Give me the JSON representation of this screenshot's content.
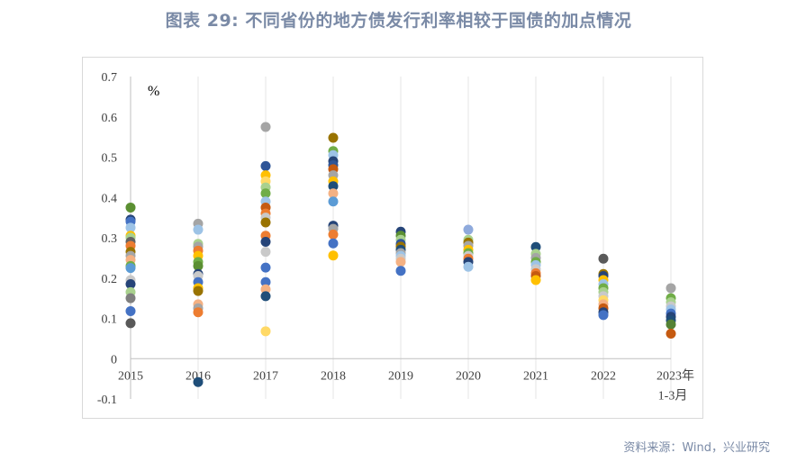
{
  "title": "图表 29: 不同省份的地方债发行利率相较于国债的加点情况",
  "source": "资料来源：Wind，兴业研究",
  "chart_data": {
    "type": "scatter",
    "unit_label": "%",
    "x_categories": [
      "2015",
      "2016",
      "2017",
      "2018",
      "2019",
      "2020",
      "2021",
      "2022",
      "2023年"
    ],
    "x_last_sublabel": "1-3月",
    "y_ticks": [
      "0.7",
      "0.6",
      "0.5",
      "0.4",
      "0.3",
      "0.2",
      "0.1",
      "0",
      "-0.1"
    ],
    "ylim": [
      -0.1,
      0.7
    ],
    "grid": "vertical",
    "points": [
      {
        "x": 0,
        "y": 0.375,
        "color": "#5b8f32"
      },
      {
        "x": 0,
        "y": 0.345,
        "color": "#264478"
      },
      {
        "x": 0,
        "y": 0.34,
        "color": "#4472c4"
      },
      {
        "x": 0,
        "y": 0.325,
        "color": "#9dc3e6"
      },
      {
        "x": 0,
        "y": 0.305,
        "color": "#ffc000"
      },
      {
        "x": 0,
        "y": 0.3,
        "color": "#a9d18e"
      },
      {
        "x": 0,
        "y": 0.29,
        "color": "#636363"
      },
      {
        "x": 0,
        "y": 0.28,
        "color": "#ed7d31"
      },
      {
        "x": 0,
        "y": 0.265,
        "color": "#997300"
      },
      {
        "x": 0,
        "y": 0.255,
        "color": "#a5a5a5"
      },
      {
        "x": 0,
        "y": 0.245,
        "color": "#f4b183"
      },
      {
        "x": 0,
        "y": 0.23,
        "color": "#70ad47"
      },
      {
        "x": 0,
        "y": 0.225,
        "color": "#5b9bd5"
      },
      {
        "x": 0,
        "y": 0.195,
        "color": "#c9c9c9"
      },
      {
        "x": 0,
        "y": 0.185,
        "color": "#264478"
      },
      {
        "x": 0,
        "y": 0.165,
        "color": "#a9d18e"
      },
      {
        "x": 0,
        "y": 0.15,
        "color": "#7f7f7f"
      },
      {
        "x": 0,
        "y": 0.118,
        "color": "#4472c4"
      },
      {
        "x": 0,
        "y": 0.088,
        "color": "#595959"
      },
      {
        "x": 1,
        "y": 0.335,
        "color": "#a5a5a5"
      },
      {
        "x": 1,
        "y": 0.32,
        "color": "#9dc3e6"
      },
      {
        "x": 1,
        "y": 0.285,
        "color": "#a9d18e"
      },
      {
        "x": 1,
        "y": 0.278,
        "color": "#a5a5a5"
      },
      {
        "x": 1,
        "y": 0.268,
        "color": "#ed7d31"
      },
      {
        "x": 1,
        "y": 0.255,
        "color": "#ffc000"
      },
      {
        "x": 1,
        "y": 0.24,
        "color": "#70ad47"
      },
      {
        "x": 1,
        "y": 0.23,
        "color": "#5b8f32"
      },
      {
        "x": 1,
        "y": 0.21,
        "color": "#264478"
      },
      {
        "x": 1,
        "y": 0.205,
        "color": "#c9c9c9"
      },
      {
        "x": 1,
        "y": 0.19,
        "color": "#4472c4"
      },
      {
        "x": 1,
        "y": 0.175,
        "color": "#ffc000"
      },
      {
        "x": 1,
        "y": 0.168,
        "color": "#997300"
      },
      {
        "x": 1,
        "y": 0.135,
        "color": "#f4b183"
      },
      {
        "x": 1,
        "y": 0.125,
        "color": "#a5a5a5"
      },
      {
        "x": 1,
        "y": 0.115,
        "color": "#ed7d31"
      },
      {
        "x": 1,
        "y": -0.058,
        "color": "#1f4e79"
      },
      {
        "x": 2,
        "y": 0.575,
        "color": "#a5a5a5"
      },
      {
        "x": 2,
        "y": 0.478,
        "color": "#2f5597"
      },
      {
        "x": 2,
        "y": 0.455,
        "color": "#ffc000"
      },
      {
        "x": 2,
        "y": 0.44,
        "color": "#ffd966"
      },
      {
        "x": 2,
        "y": 0.425,
        "color": "#a9d18e"
      },
      {
        "x": 2,
        "y": 0.41,
        "color": "#70ad47"
      },
      {
        "x": 2,
        "y": 0.39,
        "color": "#9dc3e6"
      },
      {
        "x": 2,
        "y": 0.375,
        "color": "#c55a11"
      },
      {
        "x": 2,
        "y": 0.36,
        "color": "#ed7d31"
      },
      {
        "x": 2,
        "y": 0.35,
        "color": "#c9c9c9"
      },
      {
        "x": 2,
        "y": 0.338,
        "color": "#997300"
      },
      {
        "x": 2,
        "y": 0.305,
        "color": "#ed7d31"
      },
      {
        "x": 2,
        "y": 0.29,
        "color": "#264478"
      },
      {
        "x": 2,
        "y": 0.265,
        "color": "#c9c9c9"
      },
      {
        "x": 2,
        "y": 0.226,
        "color": "#4472c4"
      },
      {
        "x": 2,
        "y": 0.19,
        "color": "#4472c4"
      },
      {
        "x": 2,
        "y": 0.172,
        "color": "#f4b183"
      },
      {
        "x": 2,
        "y": 0.155,
        "color": "#1f4e79"
      },
      {
        "x": 2,
        "y": 0.068,
        "color": "#ffd966"
      },
      {
        "x": 3,
        "y": 0.548,
        "color": "#997300"
      },
      {
        "x": 3,
        "y": 0.515,
        "color": "#70ad47"
      },
      {
        "x": 3,
        "y": 0.505,
        "color": "#9dc3e6"
      },
      {
        "x": 3,
        "y": 0.49,
        "color": "#264478"
      },
      {
        "x": 3,
        "y": 0.48,
        "color": "#2f5597"
      },
      {
        "x": 3,
        "y": 0.47,
        "color": "#c55a11"
      },
      {
        "x": 3,
        "y": 0.455,
        "color": "#a5a5a5"
      },
      {
        "x": 3,
        "y": 0.44,
        "color": "#ffc000"
      },
      {
        "x": 3,
        "y": 0.428,
        "color": "#1f4e79"
      },
      {
        "x": 3,
        "y": 0.41,
        "color": "#f4b183"
      },
      {
        "x": 3,
        "y": 0.39,
        "color": "#5b9bd5"
      },
      {
        "x": 3,
        "y": 0.33,
        "color": "#264478"
      },
      {
        "x": 3,
        "y": 0.322,
        "color": "#a5a5a5"
      },
      {
        "x": 3,
        "y": 0.308,
        "color": "#ed7d31"
      },
      {
        "x": 3,
        "y": 0.286,
        "color": "#4472c4"
      },
      {
        "x": 3,
        "y": 0.256,
        "color": "#ffc000"
      },
      {
        "x": 4,
        "y": 0.315,
        "color": "#264478"
      },
      {
        "x": 4,
        "y": 0.305,
        "color": "#5b8f32"
      },
      {
        "x": 4,
        "y": 0.295,
        "color": "#a9d18e"
      },
      {
        "x": 4,
        "y": 0.285,
        "color": "#2f5597"
      },
      {
        "x": 4,
        "y": 0.278,
        "color": "#997300"
      },
      {
        "x": 4,
        "y": 0.27,
        "color": "#1f4e79"
      },
      {
        "x": 4,
        "y": 0.262,
        "color": "#a5a5a5"
      },
      {
        "x": 4,
        "y": 0.255,
        "color": "#9dc3e6"
      },
      {
        "x": 4,
        "y": 0.248,
        "color": "#c9c9c9"
      },
      {
        "x": 4,
        "y": 0.24,
        "color": "#f4b183"
      },
      {
        "x": 4,
        "y": 0.218,
        "color": "#4472c4"
      },
      {
        "x": 5,
        "y": 0.32,
        "color": "#8faadc"
      },
      {
        "x": 5,
        "y": 0.295,
        "color": "#a9d18e"
      },
      {
        "x": 5,
        "y": 0.288,
        "color": "#997300"
      },
      {
        "x": 5,
        "y": 0.28,
        "color": "#a5a5a5"
      },
      {
        "x": 5,
        "y": 0.27,
        "color": "#ffc000"
      },
      {
        "x": 5,
        "y": 0.262,
        "color": "#70ad47"
      },
      {
        "x": 5,
        "y": 0.255,
        "color": "#c9c9c9"
      },
      {
        "x": 5,
        "y": 0.248,
        "color": "#ed7d31"
      },
      {
        "x": 5,
        "y": 0.24,
        "color": "#264478"
      },
      {
        "x": 5,
        "y": 0.228,
        "color": "#9dc3e6"
      },
      {
        "x": 6,
        "y": 0.277,
        "color": "#1f4e79"
      },
      {
        "x": 6,
        "y": 0.26,
        "color": "#a9d18e"
      },
      {
        "x": 6,
        "y": 0.25,
        "color": "#a5a5a5"
      },
      {
        "x": 6,
        "y": 0.24,
        "color": "#70ad47"
      },
      {
        "x": 6,
        "y": 0.232,
        "color": "#9dc3e6"
      },
      {
        "x": 6,
        "y": 0.222,
        "color": "#c9c9c9"
      },
      {
        "x": 6,
        "y": 0.212,
        "color": "#ed7d31"
      },
      {
        "x": 6,
        "y": 0.205,
        "color": "#c55a11"
      },
      {
        "x": 6,
        "y": 0.195,
        "color": "#ffc000"
      },
      {
        "x": 7,
        "y": 0.248,
        "color": "#595959"
      },
      {
        "x": 7,
        "y": 0.21,
        "color": "#997300"
      },
      {
        "x": 7,
        "y": 0.205,
        "color": "#264478"
      },
      {
        "x": 7,
        "y": 0.195,
        "color": "#ffc000"
      },
      {
        "x": 7,
        "y": 0.185,
        "color": "#9dc3e6"
      },
      {
        "x": 7,
        "y": 0.175,
        "color": "#70ad47"
      },
      {
        "x": 7,
        "y": 0.165,
        "color": "#a9d18e"
      },
      {
        "x": 7,
        "y": 0.155,
        "color": "#c9c9c9"
      },
      {
        "x": 7,
        "y": 0.145,
        "color": "#ffd966"
      },
      {
        "x": 7,
        "y": 0.135,
        "color": "#f4b183"
      },
      {
        "x": 7,
        "y": 0.125,
        "color": "#c55a11"
      },
      {
        "x": 7,
        "y": 0.115,
        "color": "#264478"
      },
      {
        "x": 7,
        "y": 0.108,
        "color": "#4472c4"
      },
      {
        "x": 8,
        "y": 0.175,
        "color": "#a5a5a5"
      },
      {
        "x": 8,
        "y": 0.15,
        "color": "#70ad47"
      },
      {
        "x": 8,
        "y": 0.14,
        "color": "#a9d18e"
      },
      {
        "x": 8,
        "y": 0.13,
        "color": "#c9c9c9"
      },
      {
        "x": 8,
        "y": 0.122,
        "color": "#9dc3e6"
      },
      {
        "x": 8,
        "y": 0.112,
        "color": "#4472c4"
      },
      {
        "x": 8,
        "y": 0.104,
        "color": "#264478"
      },
      {
        "x": 8,
        "y": 0.095,
        "color": "#1f4e79"
      },
      {
        "x": 8,
        "y": 0.085,
        "color": "#548235"
      },
      {
        "x": 8,
        "y": 0.062,
        "color": "#c55a11"
      }
    ]
  }
}
